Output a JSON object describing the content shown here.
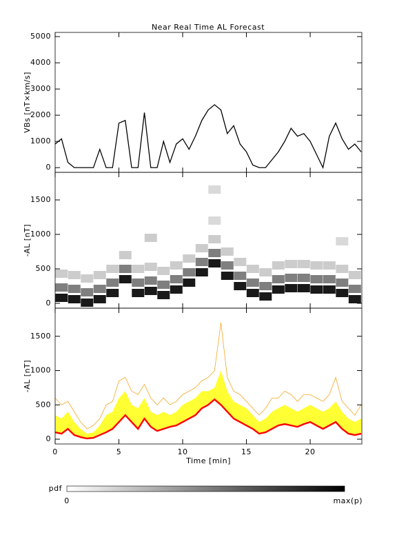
{
  "chart_data": [
    {
      "type": "line",
      "title": "Near Real Time AL Forecast",
      "y_label": "VBs [nT×km/s]",
      "color": "#000000",
      "x": [
        0,
        0.5,
        1,
        1.5,
        2,
        2.5,
        3,
        3.5,
        4,
        4.5,
        5,
        5.5,
        6,
        6.5,
        7,
        7.5,
        8,
        8.5,
        9,
        9.5,
        10,
        10.5,
        11,
        11.5,
        12,
        12.5,
        13,
        13.5,
        14,
        14.5,
        15,
        15.5,
        16,
        16.5,
        17,
        17.5,
        18,
        18.5,
        19,
        19.5,
        20,
        20.5,
        21,
        21.5,
        22,
        22.5,
        23,
        23.5,
        24
      ],
      "values": [
        900,
        1100,
        200,
        0,
        0,
        0,
        0,
        700,
        0,
        0,
        1700,
        1800,
        0,
        0,
        2100,
        0,
        0,
        1000,
        200,
        900,
        1100,
        700,
        1200,
        1800,
        2200,
        2400,
        2200,
        1300,
        1600,
        900,
        600,
        100,
        0,
        0,
        300,
        600,
        1000,
        1500,
        1200,
        1300,
        1000,
        500,
        0,
        1200,
        1700,
        1100,
        700,
        900,
        600
      ],
      "xlim": [
        0,
        24.05
      ],
      "ylim": [
        -180,
        5160
      ],
      "xticks": [
        0,
        5,
        10,
        15,
        20
      ],
      "yticks": [
        0,
        1000,
        2000,
        3000,
        4000,
        5000
      ]
    },
    {
      "type": "heatmap",
      "y_label": "-AL [nT]",
      "color": "#000000",
      "x": [
        0.5,
        0.5,
        0.5,
        1.5,
        1.5,
        1.5,
        2.5,
        2.5,
        2.5,
        3.5,
        3.5,
        3.5,
        4.5,
        4.5,
        4.5,
        5.5,
        5.5,
        5.5,
        6.5,
        6.5,
        6.5,
        7.5,
        7.5,
        7.5,
        8.5,
        8.5,
        8.5,
        9.5,
        9.5,
        9.5,
        10.5,
        10.5,
        10.5,
        11.5,
        11.5,
        11.5,
        12.5,
        12.5,
        12.5,
        13.5,
        13.5,
        13.5,
        14.5,
        14.5,
        14.5,
        15.5,
        15.5,
        15.5,
        16.5,
        16.5,
        16.5,
        17.5,
        17.5,
        17.5,
        18.5,
        18.5,
        18.5,
        19.5,
        19.5,
        19.5,
        20.5,
        20.5,
        20.5,
        21.5,
        21.5,
        21.5,
        22.5,
        22.5,
        22.5,
        23.5,
        23.5,
        23.5,
        12.5,
        12.5,
        7.5,
        22.5
      ],
      "y": [
        80,
        230,
        430,
        60,
        210,
        410,
        10,
        160,
        360,
        60,
        210,
        410,
        150,
        300,
        500,
        350,
        500,
        700,
        150,
        300,
        500,
        180,
        330,
        530,
        120,
        270,
        470,
        200,
        350,
        550,
        300,
        450,
        650,
        450,
        600,
        800,
        580,
        730,
        930,
        400,
        550,
        750,
        250,
        400,
        600,
        150,
        300,
        500,
        100,
        250,
        450,
        200,
        350,
        550,
        220,
        370,
        570,
        220,
        370,
        570,
        200,
        350,
        550,
        200,
        350,
        550,
        150,
        300,
        500,
        60,
        210,
        410,
        1650,
        1200,
        950,
        900
      ],
      "p": [
        0.9,
        0.5,
        0.2,
        0.9,
        0.5,
        0.2,
        0.9,
        0.5,
        0.2,
        0.9,
        0.5,
        0.2,
        0.9,
        0.5,
        0.2,
        0.9,
        0.5,
        0.2,
        0.9,
        0.5,
        0.2,
        0.9,
        0.5,
        0.2,
        0.9,
        0.5,
        0.2,
        0.9,
        0.5,
        0.2,
        0.9,
        0.5,
        0.2,
        0.9,
        0.5,
        0.2,
        0.9,
        0.5,
        0.2,
        0.9,
        0.5,
        0.2,
        0.9,
        0.5,
        0.2,
        0.9,
        0.5,
        0.2,
        0.9,
        0.5,
        0.2,
        0.9,
        0.5,
        0.2,
        0.9,
        0.5,
        0.2,
        0.9,
        0.5,
        0.2,
        0.9,
        0.5,
        0.2,
        0.9,
        0.5,
        0.2,
        0.9,
        0.5,
        0.2,
        0.9,
        0.5,
        0.2,
        0.15,
        0.15,
        0.2,
        0.15
      ],
      "xlim": [
        0,
        24.05
      ],
      "ylim": [
        -70,
        1900
      ],
      "xticks": [
        0,
        5,
        10,
        15,
        20
      ],
      "yticks": [
        0,
        500,
        1000,
        1500
      ]
    },
    {
      "type": "band",
      "y_label": "-AL [nT]",
      "x_label": "Time [min]",
      "x": [
        0,
        0.5,
        1,
        1.5,
        2,
        2.5,
        3,
        3.5,
        4,
        4.5,
        5,
        5.5,
        6,
        6.5,
        7,
        7.5,
        8,
        8.5,
        9,
        9.5,
        10,
        10.5,
        11,
        11.5,
        12,
        12.5,
        13,
        13.5,
        14,
        14.5,
        15,
        15.5,
        16,
        16.5,
        17,
        17.5,
        18,
        18.5,
        19,
        19.5,
        20,
        20.5,
        21,
        21.5,
        22,
        22.5,
        23,
        23.5,
        24
      ],
      "series": [
        {
          "color": "#f5a623",
          "style": "line",
          "values": [
            600,
            500,
            550,
            400,
            250,
            150,
            200,
            300,
            500,
            550,
            850,
            900,
            700,
            650,
            800,
            600,
            500,
            600,
            500,
            550,
            650,
            700,
            750,
            850,
            900,
            1000,
            1700,
            900,
            700,
            650,
            550,
            450,
            350,
            450,
            600,
            600,
            700,
            650,
            550,
            650,
            650,
            600,
            550,
            650,
            900,
            550,
            450,
            350,
            500
          ]
        },
        {
          "color": "#ffff33",
          "style": "area",
          "values": [
            350,
            300,
            400,
            250,
            150,
            80,
            100,
            200,
            350,
            400,
            600,
            700,
            500,
            450,
            600,
            400,
            350,
            400,
            350,
            400,
            500,
            550,
            600,
            700,
            700,
            750,
            1000,
            700,
            550,
            500,
            450,
            350,
            250,
            300,
            400,
            450,
            500,
            450,
            400,
            450,
            500,
            450,
            400,
            450,
            550,
            400,
            300,
            250,
            300
          ]
        },
        {
          "color": "#ff0000",
          "style": "line",
          "values": [
            100,
            80,
            150,
            60,
            30,
            10,
            20,
            60,
            100,
            150,
            250,
            350,
            250,
            150,
            300,
            180,
            120,
            150,
            180,
            200,
            250,
            300,
            350,
            450,
            500,
            580,
            500,
            400,
            300,
            250,
            200,
            150,
            80,
            100,
            150,
            200,
            220,
            200,
            180,
            220,
            250,
            200,
            150,
            200,
            250,
            150,
            80,
            60,
            80
          ]
        }
      ],
      "xlim": [
        0,
        24.05
      ],
      "ylim": [
        -70,
        1910
      ],
      "xticks": [
        0,
        5,
        10,
        15,
        20
      ],
      "yticks": [
        0,
        500,
        1000,
        1500
      ]
    }
  ],
  "colorbar": {
    "label": "pdf",
    "min_label": "0",
    "max_label": "max(p)"
  }
}
